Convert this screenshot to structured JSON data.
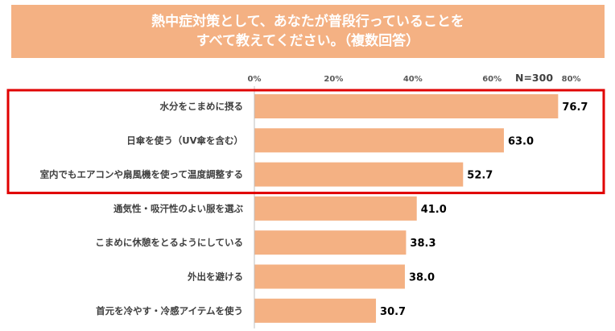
{
  "title_lines": [
    "熱中症対策として、あなたが普段行っていることを",
    "すべて教えてください。（複数回答）"
  ],
  "sample_size_label": "N=300",
  "colors": {
    "bar": "#f4b183",
    "title_bg": "#f4b183",
    "highlight_border": "#e00000"
  },
  "chart_data": {
    "type": "bar",
    "orientation": "horizontal",
    "title": "熱中症対策として、あなたが普段行っていることをすべて教えてください。（複数回答）",
    "categories": [
      "水分をこまめに摂る",
      "日傘を使う（UV傘を含む）",
      "室内でもエアコンや扇風機を使って温度調整する",
      "通気性・吸汗性のよい服を選ぶ",
      "こまめに休憩をとるようにしている",
      "外出を避ける",
      "首元を冷やす・冷感アイテムを使う"
    ],
    "values": [
      76.7,
      63.0,
      52.7,
      41.0,
      38.3,
      38.0,
      30.7
    ],
    "value_labels": [
      "76.7",
      "63.0",
      "52.7",
      "41.0",
      "38.3",
      "38.0",
      "30.7"
    ],
    "xlim": [
      0,
      80
    ],
    "ticks": [
      0,
      20,
      40,
      60,
      80
    ],
    "tick_labels": [
      "0%",
      "20%",
      "40%",
      "60%",
      "80%"
    ],
    "highlighted_categories": [
      0,
      1,
      2
    ],
    "grid": false,
    "legend": "none"
  }
}
